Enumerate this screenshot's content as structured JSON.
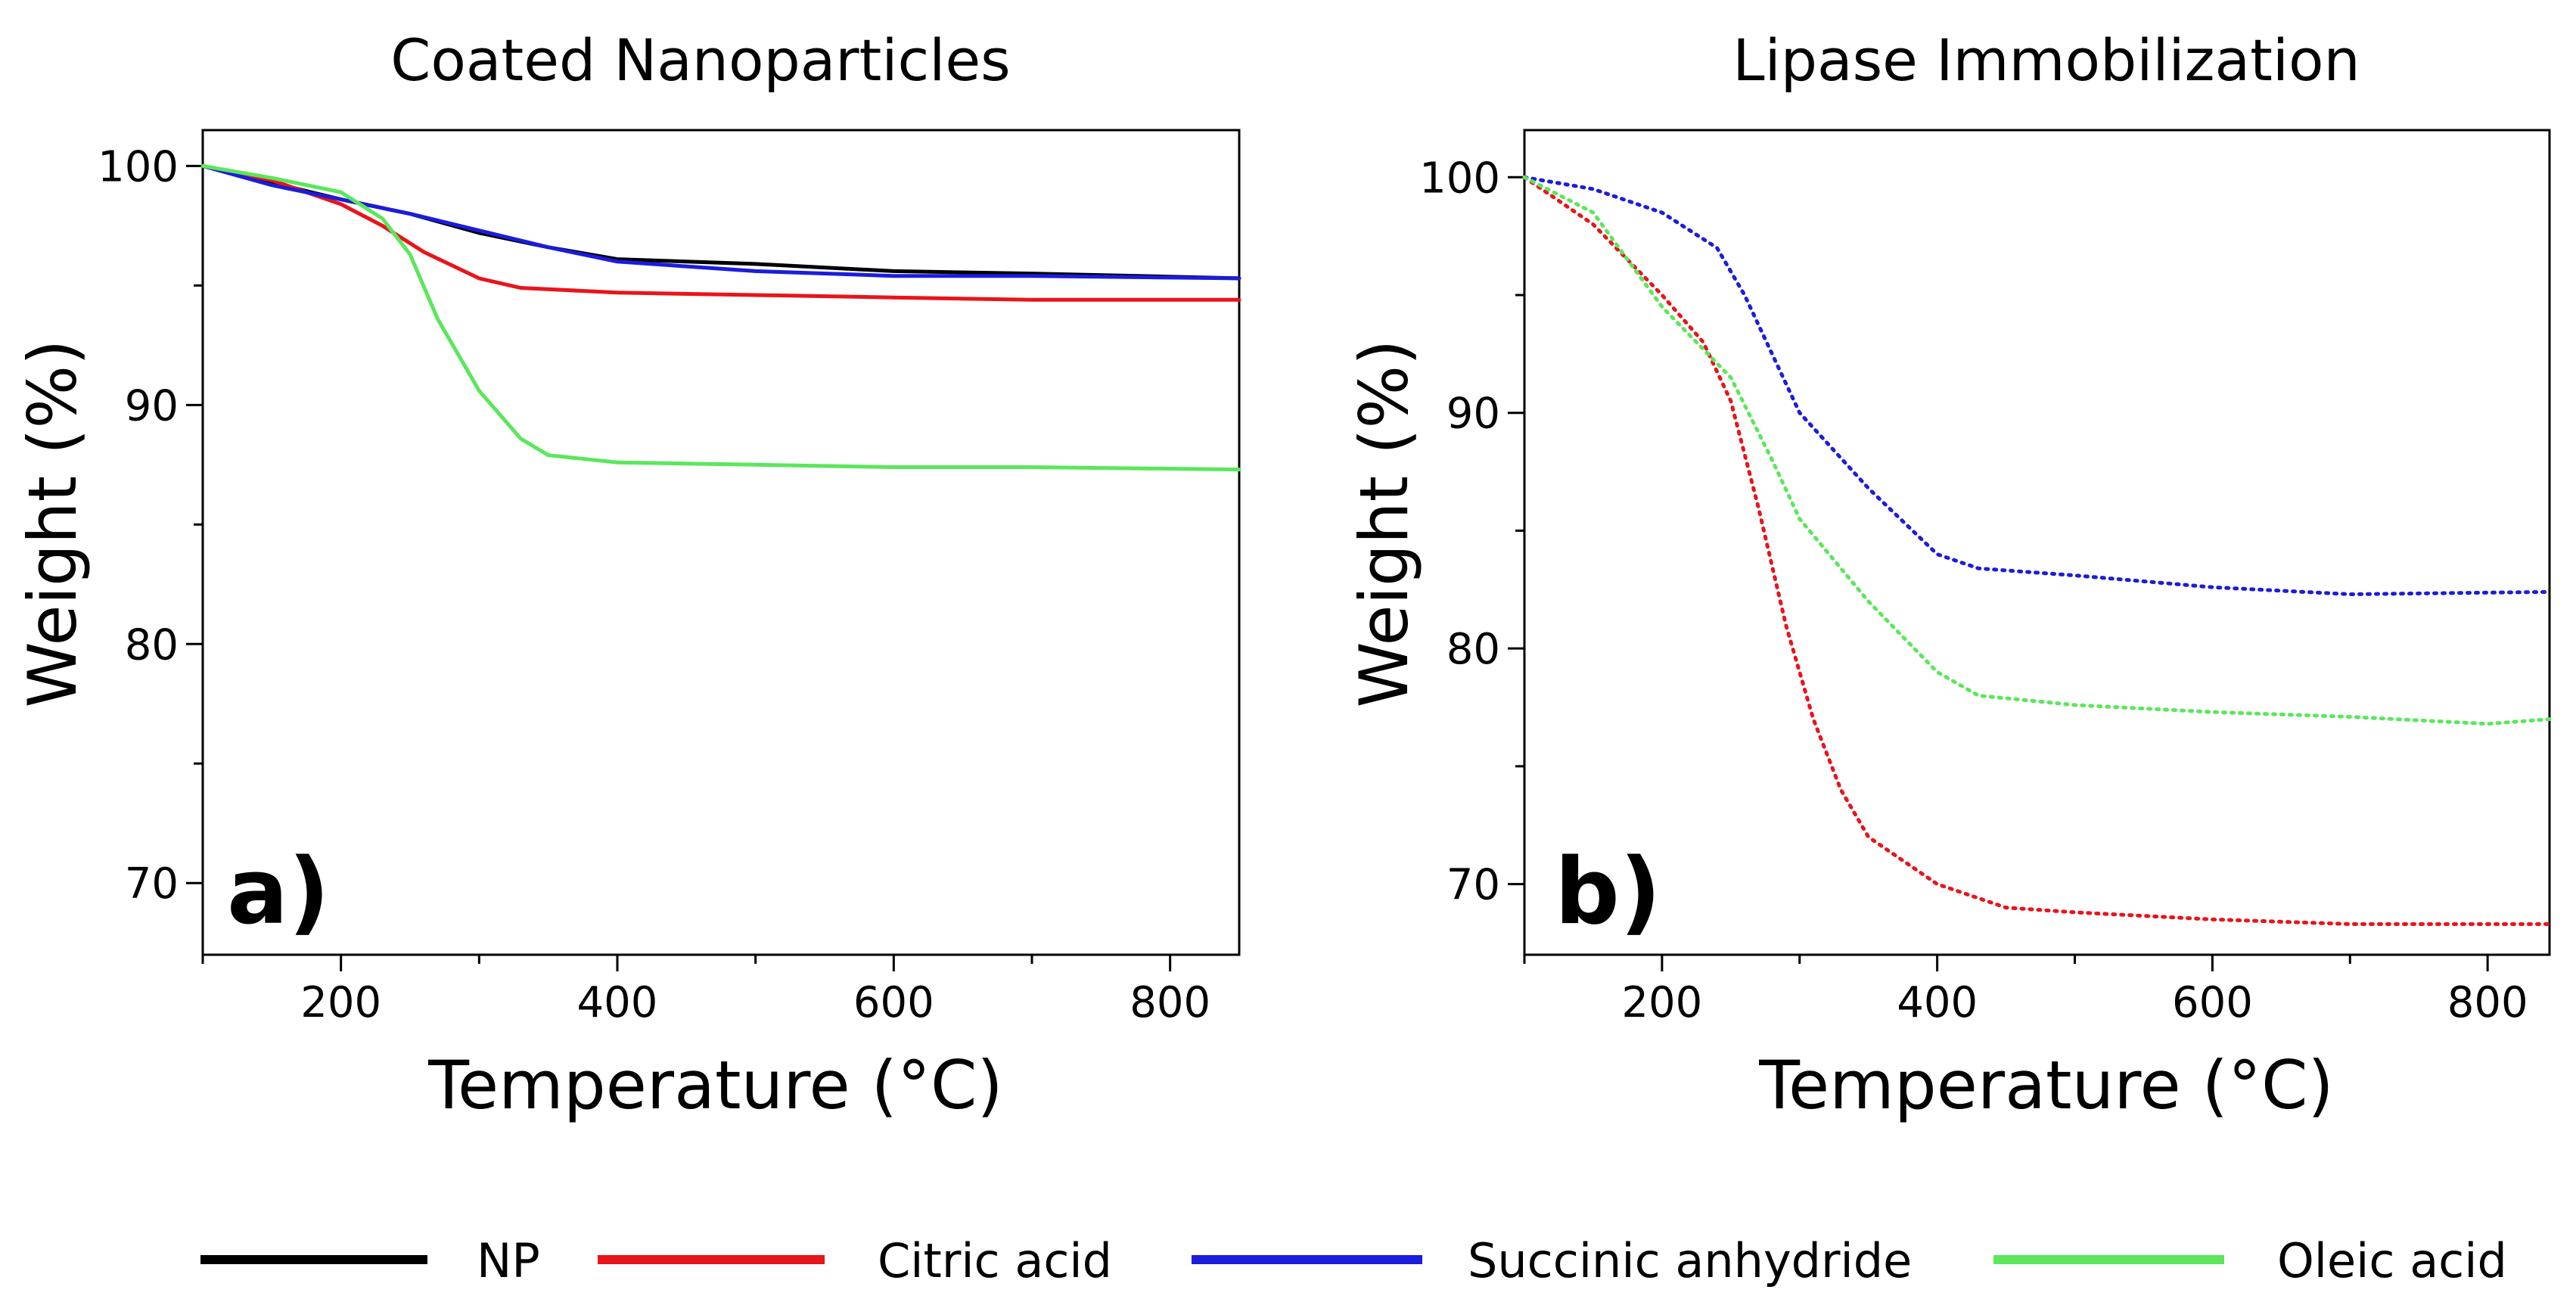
{
  "chart_data": [
    {
      "panel": "a)",
      "type": "line",
      "title": "Coated Nanoparticles",
      "xlabel": "Temperature (°C)",
      "ylabel": "Weight (%)",
      "xlim": [
        100,
        850
      ],
      "ylim": [
        67,
        101.5
      ],
      "xticks": [
        200,
        400,
        600,
        800
      ],
      "yticks": [
        70,
        80,
        90,
        100
      ],
      "line_style": "solid",
      "series": [
        {
          "name": "NP",
          "color": "#000000",
          "x": [
            100,
            150,
            200,
            250,
            300,
            350,
            400,
            500,
            600,
            700,
            850
          ],
          "y": [
            100,
            99.3,
            98.6,
            98.0,
            97.2,
            96.6,
            96.1,
            95.9,
            95.6,
            95.5,
            95.3
          ]
        },
        {
          "name": "Citric acid",
          "color": "#e8141c",
          "x": [
            100,
            150,
            200,
            230,
            260,
            300,
            330,
            400,
            500,
            600,
            700,
            850
          ],
          "y": [
            100,
            99.4,
            98.4,
            97.5,
            96.4,
            95.3,
            94.9,
            94.7,
            94.6,
            94.5,
            94.4,
            94.4
          ]
        },
        {
          "name": "Succinic anhydride",
          "color": "#1c1cdc",
          "x": [
            100,
            150,
            200,
            250,
            300,
            350,
            400,
            500,
            600,
            700,
            850
          ],
          "y": [
            100,
            99.2,
            98.6,
            98.0,
            97.3,
            96.6,
            96.0,
            95.6,
            95.4,
            95.4,
            95.3
          ]
        },
        {
          "name": "Oleic acid",
          "color": "#5ce65c",
          "x": [
            100,
            150,
            200,
            230,
            250,
            270,
            300,
            330,
            350,
            400,
            500,
            600,
            700,
            850
          ],
          "y": [
            100,
            99.5,
            98.9,
            97.8,
            96.3,
            93.6,
            90.6,
            88.6,
            87.9,
            87.6,
            87.5,
            87.4,
            87.4,
            87.3
          ]
        }
      ]
    },
    {
      "panel": "b)",
      "type": "line",
      "title": "Lipase Immobilization",
      "xlabel": "Temperature (°C)",
      "ylabel": "Weight (%)",
      "xlim": [
        100,
        845
      ],
      "ylim": [
        67,
        102
      ],
      "xticks": [
        200,
        400,
        600,
        800
      ],
      "yticks": [
        70,
        80,
        90,
        100
      ],
      "line_style": "dotted",
      "series": [
        {
          "name": "Citric acid",
          "color": "#e8141c",
          "x": [
            100,
            150,
            200,
            230,
            250,
            270,
            290,
            310,
            330,
            350,
            400,
            450,
            500,
            600,
            700,
            845
          ],
          "y": [
            100,
            98.0,
            95.0,
            93.0,
            90.5,
            86.0,
            81.0,
            77.0,
            74.0,
            72.0,
            70.0,
            69.0,
            68.8,
            68.5,
            68.3,
            68.3
          ]
        },
        {
          "name": "Succinic anhydride",
          "color": "#1c1cdc",
          "x": [
            100,
            150,
            200,
            240,
            260,
            280,
            300,
            350,
            400,
            430,
            500,
            600,
            700,
            845
          ],
          "y": [
            100,
            99.5,
            98.5,
            97.0,
            95.0,
            92.5,
            90.0,
            86.8,
            84.0,
            83.4,
            83.1,
            82.6,
            82.3,
            82.4
          ]
        },
        {
          "name": "Oleic acid",
          "color": "#5ce65c",
          "x": [
            100,
            150,
            200,
            250,
            280,
            300,
            350,
            400,
            430,
            500,
            600,
            700,
            800,
            845
          ],
          "y": [
            100,
            98.5,
            94.5,
            91.5,
            88.0,
            85.5,
            82.0,
            79.0,
            78.0,
            77.6,
            77.3,
            77.1,
            76.8,
            77.0
          ]
        }
      ]
    }
  ],
  "legend": [
    {
      "label": "NP",
      "color": "#000000"
    },
    {
      "label": "Citric acid",
      "color": "#e8141c"
    },
    {
      "label": "Succinic anhydride",
      "color": "#1c1cdc"
    },
    {
      "label": "Oleic acid",
      "color": "#5ce65c"
    }
  ]
}
